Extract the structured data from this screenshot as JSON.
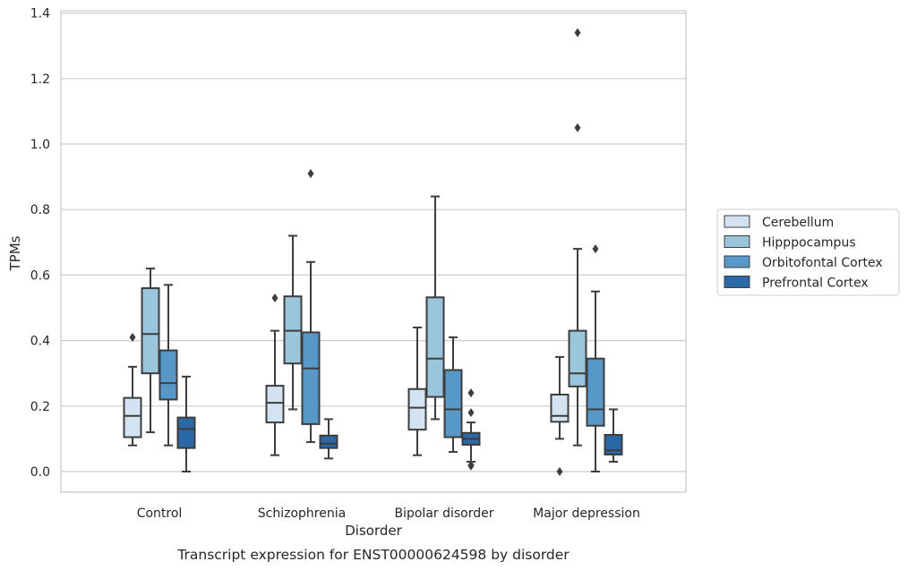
{
  "chart_data": {
    "type": "boxplot",
    "caption": "Transcript expression for ENST00000624598 by disorder",
    "xlabel": "Disorder",
    "ylabel": "TPMs",
    "ylim": [
      -0.06,
      1.41
    ],
    "yticks": [
      0.0,
      0.2,
      0.4,
      0.6,
      0.8,
      1.0,
      1.2,
      1.4
    ],
    "ytick_labels": [
      "0.0",
      "0.2",
      "0.4",
      "0.6",
      "0.8",
      "1.0",
      "1.2",
      "1.4"
    ],
    "grid": "horizontal",
    "legend_position": "right",
    "categories": [
      "Control",
      "Schizophrenia",
      "Bipolar disorder",
      "Major depression"
    ],
    "series": [
      {
        "name": "Cerebellum",
        "color": "#d3e3f2",
        "boxes": [
          {
            "whislo": 0.08,
            "q1": 0.105,
            "med": 0.17,
            "q3": 0.225,
            "whishi": 0.32,
            "fliers": [
              0.41
            ]
          },
          {
            "whislo": 0.05,
            "q1": 0.15,
            "med": 0.21,
            "q3": 0.262,
            "whishi": 0.43,
            "fliers": [
              0.53
            ]
          },
          {
            "whislo": 0.05,
            "q1": 0.128,
            "med": 0.195,
            "q3": 0.252,
            "whishi": 0.44,
            "fliers": []
          },
          {
            "whislo": 0.1,
            "q1": 0.152,
            "med": 0.17,
            "q3": 0.235,
            "whishi": 0.35,
            "fliers": [
              0.0
            ]
          }
        ]
      },
      {
        "name": "Hipppocampus",
        "color": "#9bc4dd",
        "boxes": [
          {
            "whislo": 0.12,
            "q1": 0.3,
            "med": 0.42,
            "q3": 0.56,
            "whishi": 0.62,
            "fliers": []
          },
          {
            "whislo": 0.19,
            "q1": 0.33,
            "med": 0.43,
            "q3": 0.535,
            "whishi": 0.72,
            "fliers": []
          },
          {
            "whislo": 0.16,
            "q1": 0.228,
            "med": 0.345,
            "q3": 0.532,
            "whishi": 0.84,
            "fliers": []
          },
          {
            "whislo": 0.08,
            "q1": 0.26,
            "med": 0.3,
            "q3": 0.43,
            "whishi": 0.68,
            "fliers": [
              1.05,
              1.34
            ]
          }
        ]
      },
      {
        "name": "Orbitofontal Cortex",
        "color": "#5798c8",
        "boxes": [
          {
            "whislo": 0.08,
            "q1": 0.22,
            "med": 0.27,
            "q3": 0.37,
            "whishi": 0.57,
            "fliers": []
          },
          {
            "whislo": 0.09,
            "q1": 0.145,
            "med": 0.315,
            "q3": 0.425,
            "whishi": 0.64,
            "fliers": [
              0.91
            ]
          },
          {
            "whislo": 0.06,
            "q1": 0.105,
            "med": 0.19,
            "q3": 0.31,
            "whishi": 0.41,
            "fliers": []
          },
          {
            "whislo": 0.0,
            "q1": 0.14,
            "med": 0.19,
            "q3": 0.345,
            "whishi": 0.55,
            "fliers": [
              0.68
            ]
          }
        ]
      },
      {
        "name": "Prefrontal Cortex",
        "color": "#2a68a6",
        "boxes": [
          {
            "whislo": 0.0,
            "q1": 0.072,
            "med": 0.13,
            "q3": 0.165,
            "whishi": 0.29,
            "fliers": []
          },
          {
            "whislo": 0.04,
            "q1": 0.072,
            "med": 0.085,
            "q3": 0.11,
            "whishi": 0.16,
            "fliers": []
          },
          {
            "whislo": 0.03,
            "q1": 0.082,
            "med": 0.1,
            "q3": 0.118,
            "whishi": 0.15,
            "fliers": [
              0.24,
              0.18,
              0.02,
              0.017
            ]
          },
          {
            "whislo": 0.03,
            "q1": 0.052,
            "med": 0.065,
            "q3": 0.112,
            "whishi": 0.19,
            "fliers": []
          }
        ]
      }
    ]
  }
}
